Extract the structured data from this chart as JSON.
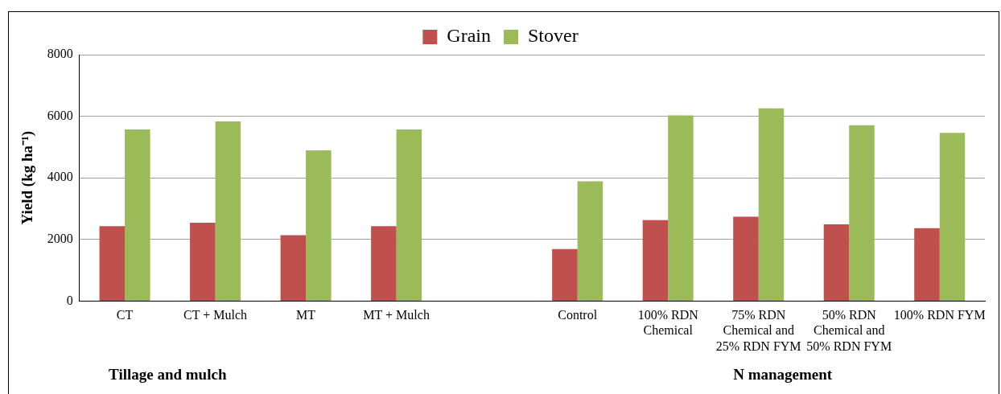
{
  "chart_data": {
    "type": "bar",
    "ylabel": "Yield (kg ha⁻¹)",
    "categories": [
      "CT",
      "CT + Mulch",
      "MT",
      "MT + Mulch",
      null,
      "Control",
      "100% RDN Chemical",
      "75% RDN Chemical and 25% RDN FYM",
      "50% RDN Chemical and 50% RDN FYM",
      "100% RDN FYM"
    ],
    "series": [
      {
        "name": "Grain",
        "color": "#c0504d",
        "values": [
          2430,
          2540,
          2140,
          2430,
          null,
          1690,
          2630,
          2740,
          2490,
          2370
        ]
      },
      {
        "name": "Stover",
        "color": "#9bbb59",
        "values": [
          5570,
          5830,
          4890,
          5570,
          null,
          3890,
          6030,
          6260,
          5710,
          5460
        ]
      }
    ],
    "ylim": [
      0,
      8000
    ],
    "yticks": [
      0,
      2000,
      4000,
      6000,
      8000
    ],
    "grid": "y",
    "legend": "top",
    "annotations": [
      "Tillage and mulch",
      "N management"
    ]
  }
}
